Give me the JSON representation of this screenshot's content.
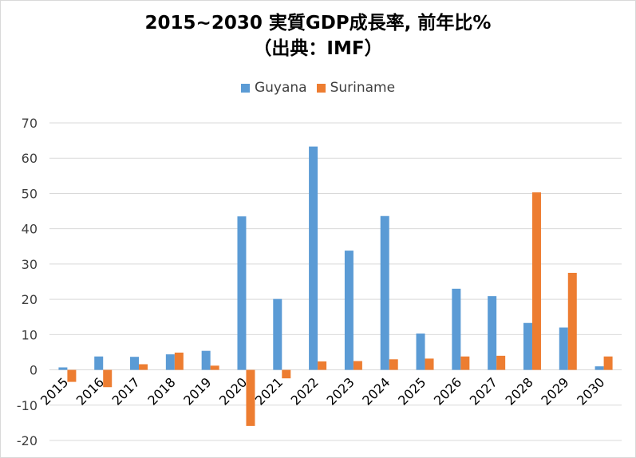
{
  "chart_data": {
    "type": "bar",
    "title": "2015~2030 実質GDP成長率, 前年比%",
    "subtitle": "（出典：IMF）",
    "categories": [
      "2015",
      "2016",
      "2017",
      "2018",
      "2019",
      "2020",
      "2021",
      "2022",
      "2023",
      "2024",
      "2025",
      "2026",
      "2027",
      "2028",
      "2029",
      "2030"
    ],
    "series": [
      {
        "name": "Guyana",
        "color": "#5b9bd5",
        "values": [
          0.7,
          3.8,
          3.7,
          4.4,
          5.4,
          43.5,
          20.1,
          63.3,
          33.8,
          43.6,
          10.3,
          23.0,
          20.9,
          13.3,
          12.0,
          1.0
        ]
      },
      {
        "name": "Suriname",
        "color": "#ed7d31",
        "values": [
          -3.4,
          -4.9,
          1.6,
          4.9,
          1.2,
          -15.9,
          -2.4,
          2.4,
          2.5,
          3.0,
          3.2,
          3.8,
          4.0,
          50.3,
          27.5,
          3.8
        ]
      }
    ],
    "ylim": [
      -20,
      70
    ],
    "yticks": [
      70,
      60,
      50,
      40,
      30,
      20,
      10,
      0,
      -10,
      -20
    ],
    "grid": true,
    "legend_position": "top"
  }
}
